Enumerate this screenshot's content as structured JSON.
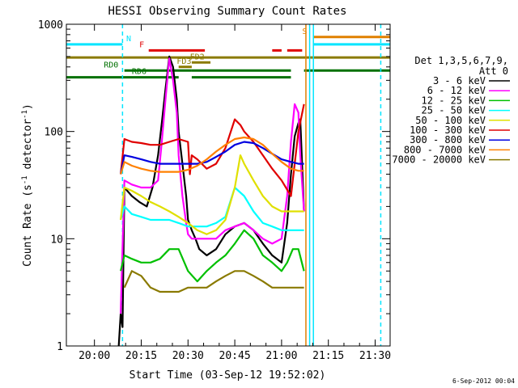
{
  "chart_data": {
    "type": "line",
    "title": "HESSI Observing Summary Count Rates",
    "xlabel": "Start Time (03-Sep-12 19:52:02)",
    "ylabel_main": "Count Rate (s",
    "ylabel_sup": "-1",
    "ylabel_rest": " detector",
    "ylabel_close": ")",
    "yscale": "log",
    "xlim": [
      -0.15,
      1.58
    ],
    "ylim": [
      1,
      1000
    ],
    "x_unit": "hours since 20:00",
    "x_ticks": [
      {
        "v": 0.0,
        "label": "20:00"
      },
      {
        "v": 0.25,
        "label": "20:15"
      },
      {
        "v": 0.5,
        "label": "20:30"
      },
      {
        "v": 0.75,
        "label": "20:45"
      },
      {
        "v": 1.0,
        "label": "21:00"
      },
      {
        "v": 1.25,
        "label": "21:15"
      },
      {
        "v": 1.5,
        "label": "21:30"
      }
    ],
    "y_ticks": [
      {
        "v": 1,
        "label": "1"
      },
      {
        "v": 10,
        "label": "10"
      },
      {
        "v": 100,
        "label": "100"
      },
      {
        "v": 1000,
        "label": "1000"
      }
    ],
    "legend": {
      "header": [
        "Det 1,3,5,6,7,9,",
        "Att 0"
      ],
      "position": "right"
    },
    "vlines": [
      {
        "x": 0.15,
        "color": "#00e5ff",
        "dash": true
      },
      {
        "x": 1.13,
        "color": "#e08000",
        "dash": false
      },
      {
        "x": 1.15,
        "color": "#00e5ff",
        "dash": false
      },
      {
        "x": 1.17,
        "color": "#00e5ff",
        "dash": false
      },
      {
        "x": 1.53,
        "color": "#00e5ff",
        "dash": true
      }
    ],
    "flags": [
      {
        "label": "N",
        "color": "#00e5ff",
        "y": 650,
        "segments": [
          [
            -0.15,
            0.15
          ]
        ],
        "label_x": 0.17
      },
      {
        "label": "S",
        "color": "#e08000",
        "y": 760,
        "segments": [
          [
            1.17,
            1.58
          ]
        ],
        "label_x": 1.11
      },
      {
        "label": "",
        "color": "#00e5ff",
        "y": 650,
        "segments": [
          [
            1.17,
            1.58
          ]
        ],
        "label_x": 1.17
      },
      {
        "label": "F",
        "color": "#e00000",
        "y": 570,
        "segments": [
          [
            0.29,
            0.59
          ],
          [
            0.95,
            1.0
          ],
          [
            1.03,
            1.11
          ]
        ],
        "label_x": 0.24
      },
      {
        "label": "",
        "color": "#8a7a00",
        "y": 490,
        "segments": [
          [
            -0.15,
            1.58
          ]
        ],
        "label_x": 0.0
      },
      {
        "label": "FD2",
        "color": "#8a7a00",
        "y": 440,
        "segments": [
          [
            0.52,
            0.62
          ]
        ],
        "label_x": 0.51
      },
      {
        "label": "FD3",
        "color": "#8a7a00",
        "y": 400,
        "segments": [
          [
            0.45,
            0.52
          ]
        ],
        "label_x": 0.44
      },
      {
        "label": "RD0",
        "color": "#007000",
        "y": 370,
        "segments": [
          [
            0.16,
            0.52
          ],
          [
            0.52,
            1.05
          ],
          [
            1.12,
            1.58
          ]
        ],
        "label_x": 0.05
      },
      {
        "label": "RD6",
        "color": "#007000",
        "y": 320,
        "segments": [
          [
            -0.15,
            0.45
          ],
          [
            0.52,
            1.05
          ]
        ],
        "label_x": 0.2
      }
    ],
    "series": [
      {
        "name": "3 - 6 keV",
        "color": "#000000",
        "x": [
          0.13,
          0.14,
          0.15,
          0.16,
          0.2,
          0.24,
          0.28,
          0.31,
          0.34,
          0.36,
          0.38,
          0.4,
          0.42,
          0.44,
          0.45,
          0.47,
          0.49,
          0.5,
          0.52,
          0.54,
          0.56,
          0.6,
          0.65,
          0.7,
          0.75,
          0.8,
          0.85,
          0.9,
          0.95,
          1.0,
          1.03,
          1.05,
          1.07,
          1.09,
          1.1,
          1.12
        ],
        "y": [
          1,
          2,
          1.5,
          30,
          25,
          22,
          20,
          30,
          60,
          120,
          250,
          500,
          400,
          200,
          100,
          50,
          25,
          15,
          12,
          10,
          8,
          7,
          8,
          11,
          13,
          14,
          12,
          9,
          7,
          6,
          14,
          40,
          90,
          120,
          130,
          18
        ]
      },
      {
        "name": "6 - 12 keV",
        "color": "#ff00ff",
        "x": [
          0.14,
          0.16,
          0.2,
          0.25,
          0.3,
          0.34,
          0.36,
          0.38,
          0.4,
          0.42,
          0.44,
          0.45,
          0.47,
          0.49,
          0.5,
          0.52,
          0.55,
          0.6,
          0.65,
          0.7,
          0.75,
          0.8,
          0.85,
          0.9,
          0.95,
          1.0,
          1.03,
          1.05,
          1.07,
          1.09,
          1.1,
          1.12
        ],
        "y": [
          2,
          35,
          32,
          30,
          30,
          35,
          80,
          200,
          480,
          300,
          150,
          60,
          25,
          14,
          11,
          10,
          10,
          10,
          10,
          12,
          13,
          14,
          12,
          10,
          9,
          10,
          25,
          80,
          180,
          150,
          60,
          18
        ]
      },
      {
        "name": "12 - 25 keV",
        "color": "#00c000",
        "x": [
          0.14,
          0.16,
          0.2,
          0.25,
          0.3,
          0.35,
          0.4,
          0.45,
          0.5,
          0.55,
          0.6,
          0.65,
          0.7,
          0.75,
          0.8,
          0.85,
          0.9,
          0.95,
          1.0,
          1.03,
          1.06,
          1.09,
          1.12
        ],
        "y": [
          5,
          7,
          6.5,
          6,
          6,
          6.5,
          8,
          8,
          5,
          4,
          5,
          6,
          7,
          9,
          12,
          10,
          7,
          6,
          5,
          6,
          8,
          8,
          5
        ]
      },
      {
        "name": "25 - 50 keV",
        "color": "#00ffff",
        "x": [
          0.14,
          0.16,
          0.2,
          0.25,
          0.3,
          0.35,
          0.4,
          0.45,
          0.5,
          0.55,
          0.6,
          0.65,
          0.7,
          0.75,
          0.8,
          0.85,
          0.9,
          0.95,
          1.0,
          1.05,
          1.09,
          1.12
        ],
        "y": [
          15,
          20,
          17,
          16,
          15,
          15,
          15,
          14,
          13,
          13,
          13,
          14,
          16,
          30,
          25,
          18,
          14,
          13,
          12,
          12,
          12,
          12
        ]
      },
      {
        "name": "50 - 100 keV",
        "color": "#e0e000",
        "x": [
          0.14,
          0.16,
          0.2,
          0.25,
          0.3,
          0.35,
          0.4,
          0.45,
          0.5,
          0.55,
          0.6,
          0.65,
          0.7,
          0.75,
          0.78,
          0.8,
          0.85,
          0.9,
          0.95,
          1.0,
          1.05,
          1.09,
          1.12
        ],
        "y": [
          15,
          30,
          28,
          25,
          22,
          20,
          18,
          16,
          14,
          12,
          11,
          12,
          15,
          30,
          60,
          50,
          35,
          25,
          20,
          18,
          18,
          18,
          18
        ]
      },
      {
        "name": "100 - 300 keV",
        "color": "#e00000",
        "x": [
          0.14,
          0.16,
          0.2,
          0.25,
          0.3,
          0.35,
          0.4,
          0.45,
          0.5,
          0.51,
          0.52,
          0.55,
          0.6,
          0.65,
          0.7,
          0.75,
          0.78,
          0.8,
          0.85,
          0.9,
          0.95,
          1.0,
          1.05,
          1.09,
          1.12
        ],
        "y": [
          40,
          85,
          80,
          78,
          75,
          75,
          80,
          85,
          80,
          40,
          60,
          55,
          45,
          50,
          70,
          130,
          115,
          100,
          80,
          60,
          45,
          35,
          25,
          100,
          180
        ]
      },
      {
        "name": "300 - 800 keV",
        "color": "#0000e0",
        "x": [
          0.14,
          0.16,
          0.2,
          0.25,
          0.3,
          0.35,
          0.4,
          0.45,
          0.5,
          0.55,
          0.6,
          0.65,
          0.7,
          0.75,
          0.8,
          0.85,
          0.9,
          0.95,
          1.0,
          1.05,
          1.09,
          1.12
        ],
        "y": [
          40,
          60,
          58,
          55,
          52,
          50,
          50,
          50,
          50,
          50,
          52,
          58,
          65,
          75,
          80,
          78,
          70,
          62,
          55,
          52,
          50,
          50
        ]
      },
      {
        "name": "800 - 7000 keV",
        "color": "#ff8000",
        "x": [
          0.14,
          0.16,
          0.2,
          0.25,
          0.3,
          0.35,
          0.4,
          0.45,
          0.5,
          0.55,
          0.6,
          0.65,
          0.7,
          0.75,
          0.8,
          0.85,
          0.9,
          0.95,
          1.0,
          1.05,
          1.09,
          1.12
        ],
        "y": [
          40,
          52,
          48,
          45,
          43,
          42,
          42,
          42,
          44,
          48,
          55,
          65,
          75,
          85,
          88,
          85,
          75,
          62,
          52,
          45,
          43,
          43
        ]
      },
      {
        "name": "7000 - 20000 keV",
        "color": "#8a7a00",
        "x": [
          0.16,
          0.2,
          0.25,
          0.3,
          0.35,
          0.4,
          0.45,
          0.5,
          0.55,
          0.6,
          0.65,
          0.7,
          0.75,
          0.8,
          0.85,
          0.9,
          0.95,
          1.0,
          1.05,
          1.09,
          1.12
        ],
        "y": [
          3.5,
          5,
          4.5,
          3.5,
          3.2,
          3.2,
          3.2,
          3.5,
          3.5,
          3.5,
          4,
          4.5,
          5,
          5,
          4.5,
          4,
          3.5,
          3.5,
          3.5,
          3.5,
          3.5
        ]
      }
    ]
  },
  "footer": {
    "date_stamp": "6-Sep-2012 00:04"
  }
}
